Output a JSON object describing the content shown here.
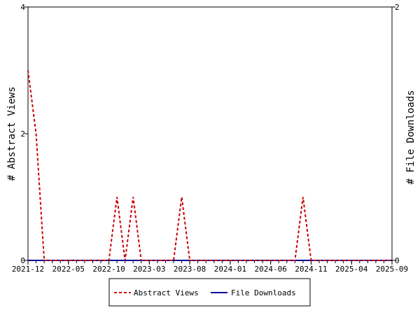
{
  "chart_data": {
    "type": "line",
    "xlabel": "",
    "ylabel_left": "# Abstract Views",
    "ylabel_right": "# File Downloads",
    "ylim_left": [
      0,
      4
    ],
    "ylim_right": [
      0,
      2
    ],
    "yticks_left": [
      "0",
      "2",
      "4"
    ],
    "yticks_right": [
      "0",
      "2"
    ],
    "x_start": "2021-12",
    "x_end": "2025-09",
    "x_tick_labels": [
      "2021-12",
      "2022-05",
      "2022-10",
      "2023-03",
      "2023-08",
      "2024-01",
      "2024-06",
      "2024-11",
      "2025-04",
      "2025-09"
    ],
    "grid": false,
    "legend_position": "bottom",
    "series": [
      {
        "name": "Abstract Views",
        "axis": "left",
        "color": "#cc0000",
        "style": "dashed",
        "points": [
          [
            "2021-12",
            3
          ],
          [
            "2022-01",
            2
          ],
          [
            "2022-02",
            0
          ],
          [
            "2022-03",
            0
          ],
          [
            "2022-04",
            0
          ],
          [
            "2022-05",
            0
          ],
          [
            "2022-06",
            0
          ],
          [
            "2022-07",
            0
          ],
          [
            "2022-08",
            0
          ],
          [
            "2022-09",
            0
          ],
          [
            "2022-10",
            0
          ],
          [
            "2022-11",
            1
          ],
          [
            "2022-12",
            0
          ],
          [
            "2023-01",
            1
          ],
          [
            "2023-02",
            0
          ],
          [
            "2023-03",
            0
          ],
          [
            "2023-04",
            0
          ],
          [
            "2023-05",
            0
          ],
          [
            "2023-06",
            0
          ],
          [
            "2023-07",
            1
          ],
          [
            "2023-08",
            0
          ],
          [
            "2023-09",
            0
          ],
          [
            "2023-10",
            0
          ],
          [
            "2023-11",
            0
          ],
          [
            "2023-12",
            0
          ],
          [
            "2024-01",
            0
          ],
          [
            "2024-02",
            0
          ],
          [
            "2024-03",
            0
          ],
          [
            "2024-04",
            0
          ],
          [
            "2024-05",
            0
          ],
          [
            "2024-06",
            0
          ],
          [
            "2024-07",
            0
          ],
          [
            "2024-08",
            0
          ],
          [
            "2024-09",
            0
          ],
          [
            "2024-10",
            1
          ],
          [
            "2024-11",
            0
          ],
          [
            "2024-12",
            0
          ],
          [
            "2025-01",
            0
          ],
          [
            "2025-02",
            0
          ],
          [
            "2025-03",
            0
          ],
          [
            "2025-04",
            0
          ],
          [
            "2025-05",
            0
          ],
          [
            "2025-06",
            0
          ],
          [
            "2025-07",
            0
          ],
          [
            "2025-08",
            0
          ],
          [
            "2025-09",
            0
          ]
        ]
      },
      {
        "name": "File Downloads",
        "axis": "right",
        "color": "#000099",
        "style": "solid",
        "points": [
          [
            "2021-12",
            0
          ],
          [
            "2025-09",
            0
          ]
        ]
      }
    ]
  }
}
